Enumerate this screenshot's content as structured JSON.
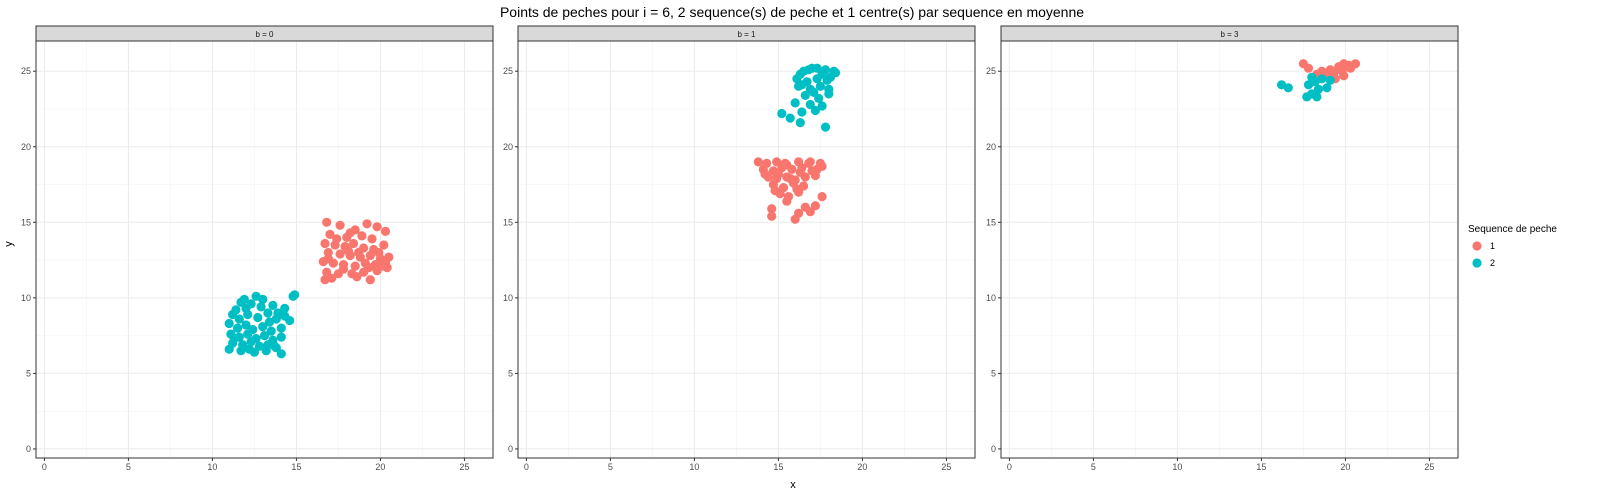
{
  "chart_data": {
    "type": "scatter",
    "title": "Points de peches pour i = 6, 2 sequence(s) de peche et 1 centre(s) par sequence en moyenne",
    "xlabel": "x",
    "ylabel": "y",
    "xlim": [
      -0.5,
      26.7
    ],
    "ylim": [
      -0.6,
      27.0
    ],
    "x_ticks": [
      0,
      5,
      10,
      15,
      20,
      25
    ],
    "y_ticks": [
      0,
      5,
      10,
      15,
      20,
      25
    ],
    "grid": true,
    "legend": {
      "title": "Sequence de peche",
      "placement": "right",
      "entries": [
        {
          "label": "1",
          "color": "#F8766D"
        },
        {
          "label": "2",
          "color": "#00BFC4"
        }
      ]
    },
    "facets": [
      {
        "label": "b = 0",
        "series": [
          {
            "name": "1",
            "color": "#F8766D",
            "points": [
              [
                16.8,
                15.0
              ],
              [
                17.6,
                14.8
              ],
              [
                18.5,
                14.5
              ],
              [
                19.2,
                14.9
              ],
              [
                19.8,
                14.7
              ],
              [
                20.3,
                14.4
              ],
              [
                17.0,
                14.2
              ],
              [
                18.0,
                14.0
              ],
              [
                18.9,
                14.1
              ],
              [
                19.5,
                13.9
              ],
              [
                16.7,
                13.6
              ],
              [
                17.3,
                13.5
              ],
              [
                17.9,
                13.4
              ],
              [
                18.4,
                13.6
              ],
              [
                19.0,
                13.3
              ],
              [
                19.6,
                13.2
              ],
              [
                20.2,
                13.5
              ],
              [
                16.9,
                13.0
              ],
              [
                17.6,
                12.9
              ],
              [
                18.2,
                12.8
              ],
              [
                18.8,
                12.7
              ],
              [
                19.4,
                12.8
              ],
              [
                20.0,
                12.6
              ],
              [
                20.5,
                12.7
              ],
              [
                16.6,
                12.4
              ],
              [
                17.2,
                12.3
              ],
              [
                17.8,
                12.2
              ],
              [
                18.5,
                12.1
              ],
              [
                19.1,
                12.3
              ],
              [
                19.7,
                12.2
              ],
              [
                20.3,
                12.3
              ],
              [
                16.8,
                11.7
              ],
              [
                17.5,
                11.6
              ],
              [
                18.3,
                11.6
              ],
              [
                19.0,
                11.7
              ],
              [
                19.8,
                11.8
              ],
              [
                20.4,
                12.0
              ],
              [
                17.1,
                11.3
              ],
              [
                18.6,
                11.4
              ],
              [
                19.4,
                11.2
              ],
              [
                16.7,
                11.2
              ],
              [
                17.8,
                11.9
              ],
              [
                18.1,
                13.1
              ],
              [
                19.3,
                12.0
              ],
              [
                20.1,
                12.1
              ],
              [
                17.4,
                13.9
              ],
              [
                18.7,
                13.0
              ],
              [
                16.9,
                12.6
              ],
              [
                19.9,
                13.0
              ],
              [
                18.2,
                14.3
              ]
            ]
          },
          {
            "name": "2",
            "color": "#00BFC4",
            "points": [
              [
                11.7,
                9.7
              ],
              [
                12.0,
                9.3
              ],
              [
                12.6,
                10.1
              ],
              [
                13.0,
                9.9
              ],
              [
                13.6,
                9.5
              ],
              [
                14.3,
                9.3
              ],
              [
                14.8,
                10.1
              ],
              [
                11.2,
                8.9
              ],
              [
                11.6,
                8.6
              ],
              [
                12.1,
                8.9
              ],
              [
                12.7,
                8.7
              ],
              [
                13.3,
                9.0
              ],
              [
                13.8,
                8.6
              ],
              [
                14.3,
                8.8
              ],
              [
                11.0,
                8.3
              ],
              [
                11.5,
                8.0
              ],
              [
                12.0,
                8.2
              ],
              [
                12.4,
                7.9
              ],
              [
                13.0,
                8.1
              ],
              [
                13.5,
                7.8
              ],
              [
                14.1,
                8.0
              ],
              [
                14.6,
                8.5
              ],
              [
                11.1,
                7.6
              ],
              [
                11.6,
                7.4
              ],
              [
                12.1,
                7.6
              ],
              [
                12.6,
                7.3
              ],
              [
                13.1,
                7.5
              ],
              [
                13.6,
                7.2
              ],
              [
                14.1,
                7.4
              ],
              [
                11.2,
                7.0
              ],
              [
                11.8,
                6.9
              ],
              [
                12.3,
                7.1
              ],
              [
                12.8,
                6.8
              ],
              [
                13.3,
                6.9
              ],
              [
                13.8,
                6.7
              ],
              [
                11.0,
                6.6
              ],
              [
                11.7,
                6.5
              ],
              [
                12.5,
                6.4
              ],
              [
                13.2,
                6.5
              ],
              [
                14.1,
                6.3
              ],
              [
                11.9,
                9.9
              ],
              [
                12.9,
                9.4
              ],
              [
                13.9,
                9.0
              ],
              [
                14.9,
                10.2
              ],
              [
                11.4,
                9.2
              ],
              [
                12.3,
                9.6
              ],
              [
                13.4,
                8.4
              ],
              [
                11.3,
                7.3
              ],
              [
                12.2,
                6.6
              ],
              [
                13.7,
                6.8
              ]
            ]
          }
        ]
      },
      {
        "label": "b = 1",
        "series": [
          {
            "name": "1",
            "color": "#F8766D",
            "points": [
              [
                13.8,
                19.0
              ],
              [
                14.3,
                18.9
              ],
              [
                14.9,
                19.0
              ],
              [
                15.5,
                18.8
              ],
              [
                16.2,
                19.0
              ],
              [
                16.9,
                19.0
              ],
              [
                17.5,
                18.9
              ],
              [
                14.1,
                18.5
              ],
              [
                14.7,
                18.4
              ],
              [
                15.2,
                18.6
              ],
              [
                15.8,
                18.5
              ],
              [
                16.4,
                18.6
              ],
              [
                17.0,
                18.4
              ],
              [
                17.6,
                18.7
              ],
              [
                14.4,
                18.0
              ],
              [
                14.9,
                17.9
              ],
              [
                15.5,
                18.0
              ],
              [
                16.0,
                17.8
              ],
              [
                16.6,
                18.0
              ],
              [
                17.2,
                18.1
              ],
              [
                14.7,
                17.5
              ],
              [
                15.3,
                17.3
              ],
              [
                15.9,
                17.6
              ],
              [
                16.5,
                17.4
              ],
              [
                15.1,
                16.9
              ],
              [
                15.6,
                16.7
              ],
              [
                16.2,
                17.0
              ],
              [
                17.6,
                16.7
              ],
              [
                15.5,
                16.4
              ],
              [
                16.6,
                16.0
              ],
              [
                17.2,
                16.1
              ],
              [
                14.6,
                15.9
              ],
              [
                14.6,
                15.4
              ],
              [
                16.2,
                15.6
              ],
              [
                16.0,
                15.2
              ],
              [
                16.9,
                15.7
              ],
              [
                15.0,
                18.2
              ],
              [
                16.8,
                18.9
              ],
              [
                14.2,
                18.2
              ],
              [
                15.7,
                17.9
              ],
              [
                16.3,
                18.3
              ],
              [
                17.3,
                18.5
              ],
              [
                15.4,
                18.9
              ],
              [
                16.1,
                17.2
              ],
              [
                14.8,
                17.1
              ]
            ]
          },
          {
            "name": "2",
            "color": "#00BFC4",
            "points": [
              [
                16.3,
                24.8
              ],
              [
                16.8,
                25.1
              ],
              [
                17.3,
                25.2
              ],
              [
                17.8,
                25.1
              ],
              [
                18.3,
                25.0
              ],
              [
                16.1,
                24.5
              ],
              [
                16.7,
                24.3
              ],
              [
                17.3,
                24.5
              ],
              [
                17.9,
                24.4
              ],
              [
                16.2,
                24.0
              ],
              [
                16.9,
                23.8
              ],
              [
                17.5,
                24.0
              ],
              [
                18.0,
                23.8
              ],
              [
                16.6,
                23.4
              ],
              [
                17.4,
                23.2
              ],
              [
                18.0,
                23.5
              ],
              [
                16.0,
                22.9
              ],
              [
                16.9,
                22.8
              ],
              [
                17.6,
                22.7
              ],
              [
                15.2,
                22.2
              ],
              [
                15.7,
                21.9
              ],
              [
                16.4,
                22.3
              ],
              [
                17.2,
                22.4
              ],
              [
                16.3,
                21.6
              ],
              [
                17.8,
                21.3
              ],
              [
                16.5,
                25.0
              ],
              [
                17.6,
                24.8
              ],
              [
                18.1,
                24.6
              ],
              [
                16.4,
                24.1
              ],
              [
                17.1,
                23.6
              ],
              [
                18.4,
                24.9
              ],
              [
                17.0,
                25.2
              ]
            ]
          }
        ]
      },
      {
        "label": "b = 3",
        "series": [
          {
            "name": "1",
            "color": "#F8766D",
            "points": [
              [
                17.5,
                25.5
              ],
              [
                17.8,
                25.2
              ],
              [
                18.3,
                24.8
              ],
              [
                18.8,
                24.7
              ],
              [
                19.3,
                24.9
              ],
              [
                19.6,
                25.3
              ],
              [
                19.9,
                25.5
              ],
              [
                20.2,
                25.4
              ],
              [
                20.6,
                25.5
              ],
              [
                19.8,
                25.0
              ],
              [
                19.4,
                24.5
              ],
              [
                19.9,
                24.7
              ],
              [
                20.3,
                25.2
              ],
              [
                19.1,
                25.1
              ],
              [
                18.6,
                25.0
              ]
            ]
          },
          {
            "name": "2",
            "color": "#00BFC4",
            "points": [
              [
                16.2,
                24.1
              ],
              [
                16.6,
                23.9
              ],
              [
                17.8,
                24.1
              ],
              [
                18.0,
                23.5
              ],
              [
                17.7,
                23.3
              ],
              [
                18.3,
                23.3
              ],
              [
                18.2,
                24.3
              ],
              [
                18.6,
                24.5
              ],
              [
                19.1,
                24.4
              ],
              [
                18.0,
                24.6
              ],
              [
                18.9,
                23.9
              ],
              [
                18.4,
                23.8
              ]
            ]
          }
        ]
      }
    ]
  }
}
